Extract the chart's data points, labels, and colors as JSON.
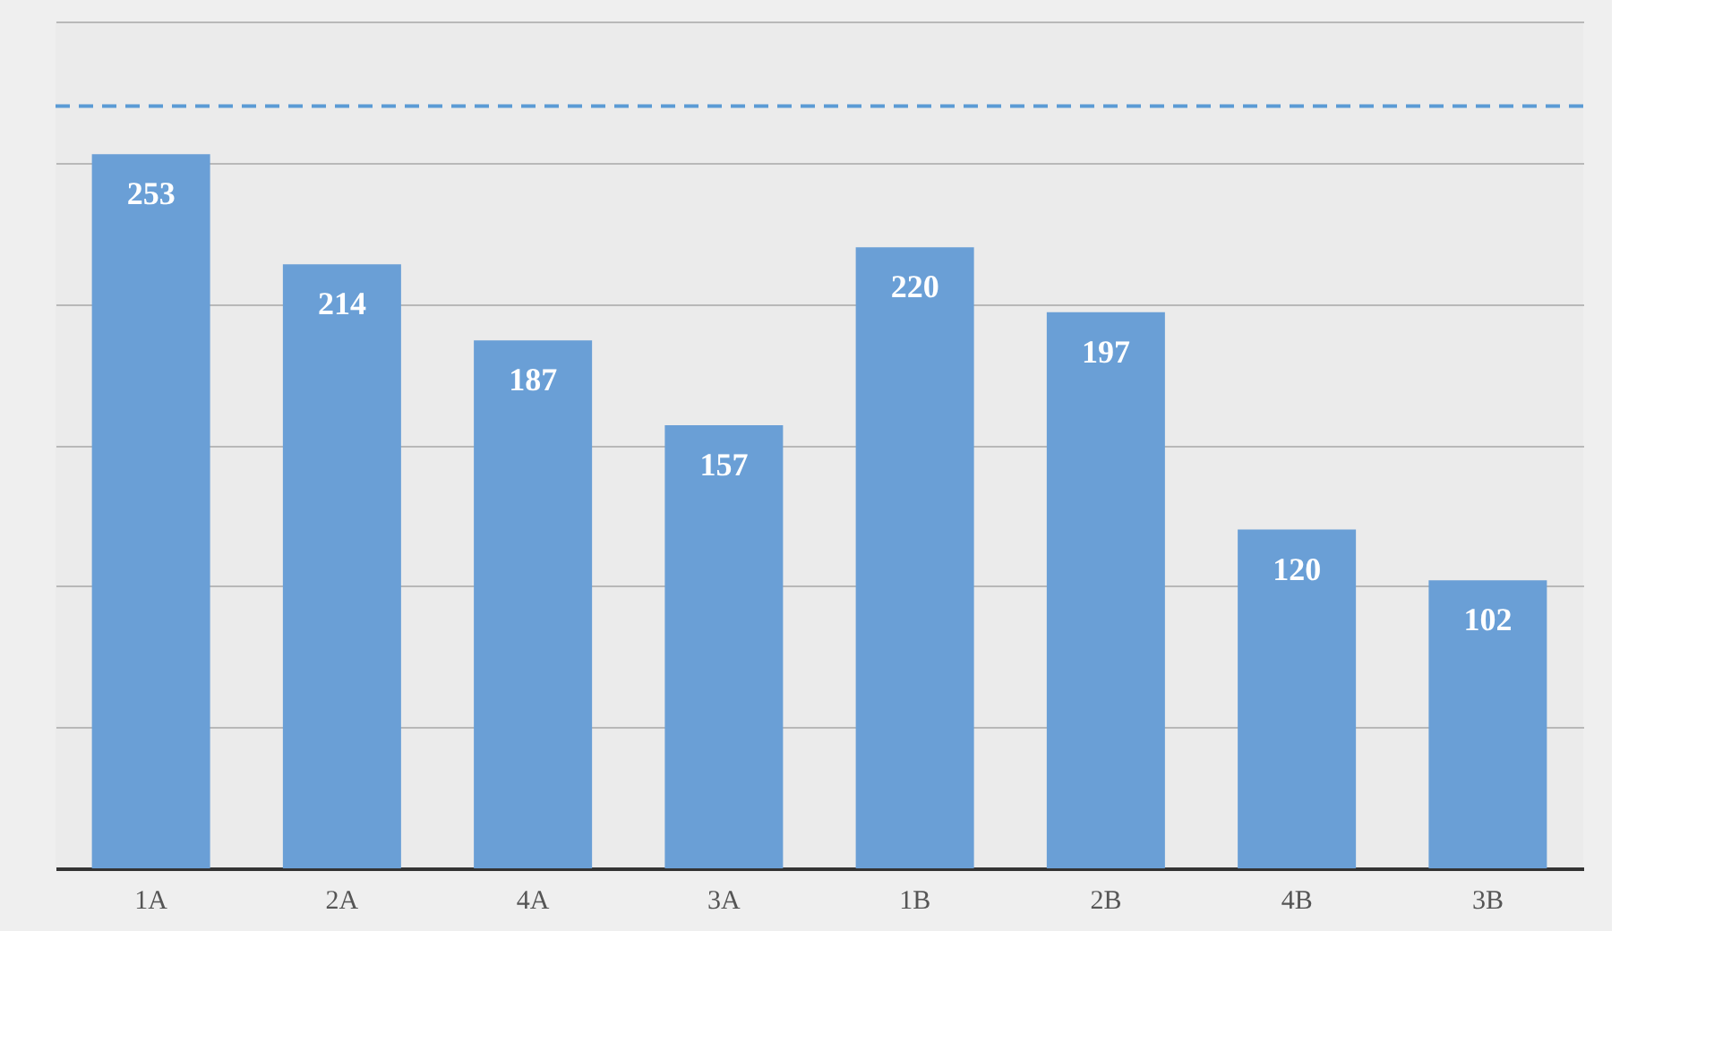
{
  "chart_data": {
    "type": "bar",
    "categories": [
      "1A",
      "2A",
      "4A",
      "3A",
      "1B",
      "2B",
      "4B",
      "3B"
    ],
    "values": [
      253,
      214,
      187,
      157,
      220,
      197,
      120,
      102
    ],
    "color": "#6a9fd6",
    "data_labels": true,
    "ylim": [
      0,
      300
    ],
    "yticks": [
      {
        "value": 0,
        "label": null
      },
      {
        "value": 50,
        "label": null
      },
      {
        "value": 100,
        "label": null
      },
      {
        "value": 150,
        "label": null
      },
      {
        "value": 200,
        "label": null
      },
      {
        "value": 250,
        "label": null
      },
      {
        "value": 300,
        "label": null
      }
    ],
    "grid": "y",
    "tick_labels": "x",
    "ref_lines": [
      {
        "axis": "y",
        "value": 270,
        "color": "#5b9bd5",
        "line_style": "dashed"
      }
    ]
  }
}
